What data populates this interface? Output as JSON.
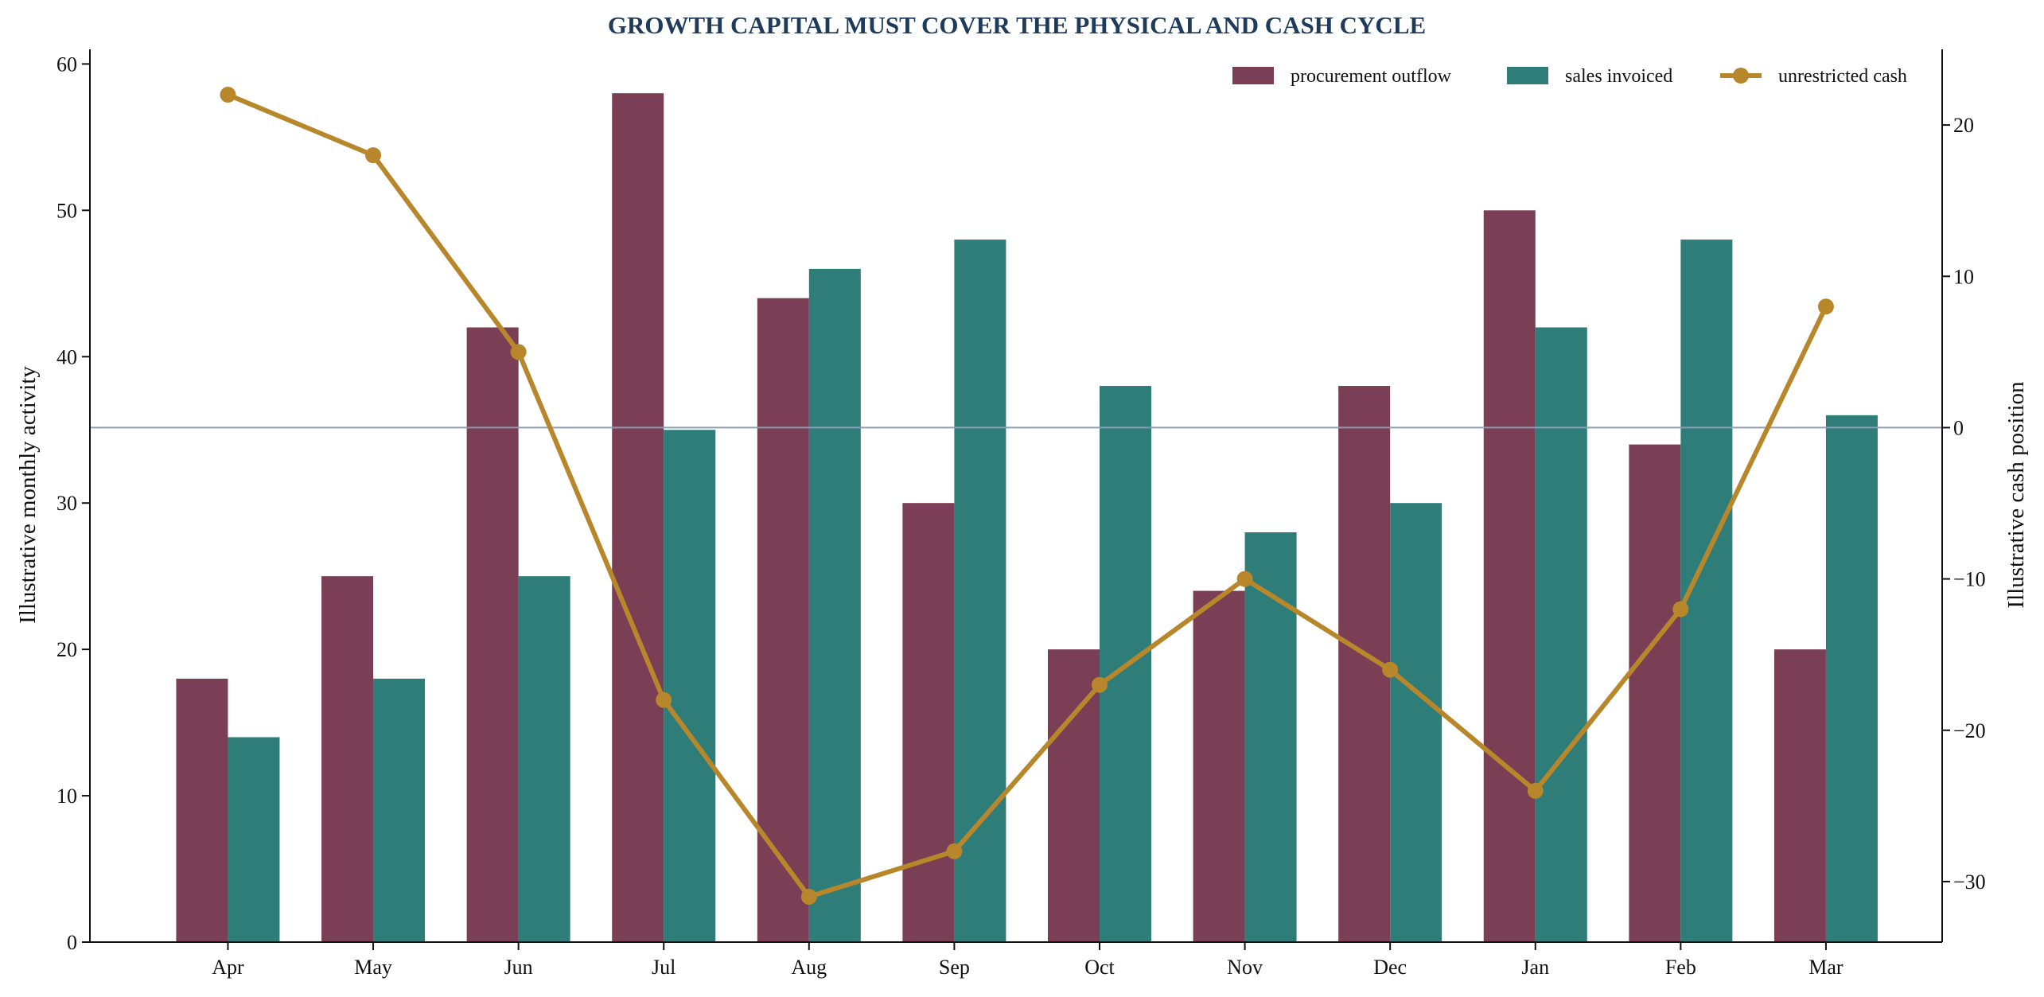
{
  "chart_data": {
    "type": "bar",
    "title": "GROWTH CAPITAL MUST COVER THE PHYSICAL AND CASH CYCLE",
    "categories": [
      "Apr",
      "May",
      "Jun",
      "Jul",
      "Aug",
      "Sep",
      "Oct",
      "Nov",
      "Dec",
      "Jan",
      "Feb",
      "Mar"
    ],
    "ylabel": "Illustrative monthly activity",
    "y2label": "Illustrative cash position",
    "ylim": [
      0,
      61
    ],
    "y2lim": [
      -34,
      25
    ],
    "yticks": [
      0,
      10,
      20,
      30,
      40,
      50,
      60
    ],
    "y2ticks": [
      -30,
      -20,
      -10,
      0,
      10,
      20
    ],
    "zero_line_color": "#8a9db5",
    "legend_placement": "top-right",
    "grid": false,
    "series": [
      {
        "name": "procurement outflow",
        "kind": "bar",
        "axis": "left",
        "color": "#7a3e55",
        "values": [
          18,
          25,
          42,
          58,
          44,
          30,
          20,
          24,
          38,
          50,
          34,
          20
        ]
      },
      {
        "name": "sales invoiced",
        "kind": "bar",
        "axis": "left",
        "color": "#2e7d78",
        "values": [
          14,
          18,
          25,
          35,
          46,
          48,
          38,
          28,
          30,
          42,
          48,
          36
        ]
      },
      {
        "name": "unrestricted cash",
        "kind": "line",
        "axis": "right",
        "color": "#b8862b",
        "values": [
          22,
          18,
          5,
          -18,
          -31,
          -28,
          -17,
          -10,
          -16,
          -24,
          -12,
          8
        ]
      }
    ]
  }
}
